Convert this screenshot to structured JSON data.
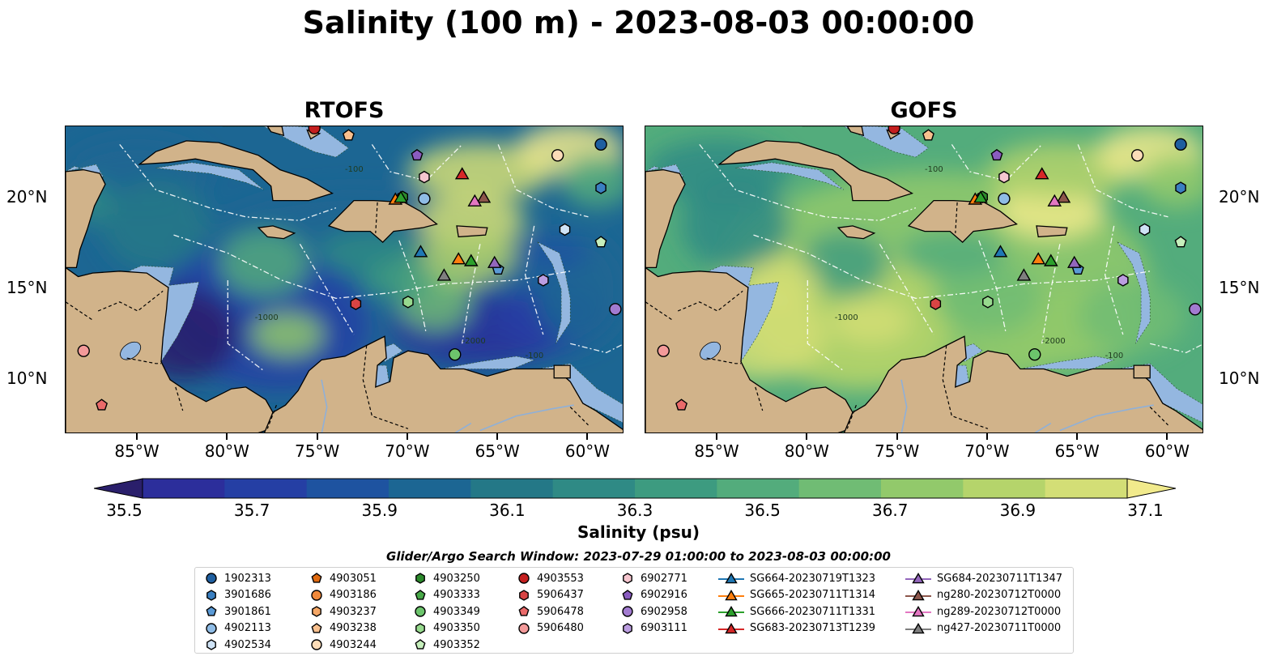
{
  "figure": {
    "title": "Salinity (100 m) - 2023-08-03 00:00:00",
    "panels": [
      {
        "title": "RTOFS",
        "style": "rtofs"
      },
      {
        "title": "GOFS",
        "style": "gofs"
      }
    ],
    "lon_ticks": [
      "85°W",
      "80°W",
      "75°W",
      "70°W",
      "65°W",
      "60°W"
    ],
    "lon_values": [
      -85,
      -80,
      -75,
      -70,
      -65,
      -60
    ],
    "lat_ticks": [
      "20°N",
      "15°N",
      "10°N"
    ],
    "lat_values": [
      20,
      15,
      10
    ],
    "extent": {
      "lon": [
        -89,
        -58
      ],
      "lat": [
        7,
        24
      ]
    },
    "isobath_labels": [
      "-1000",
      "-2000",
      "-100"
    ]
  },
  "colorbar": {
    "label": "Salinity (psu)",
    "ticks": [
      "35.5",
      "35.7",
      "35.9",
      "36.1",
      "36.3",
      "36.5",
      "36.7",
      "36.9",
      "37.1"
    ],
    "tick_values": [
      35.5,
      35.7,
      35.9,
      36.1,
      36.3,
      36.5,
      36.7,
      36.9,
      37.1
    ],
    "range": [
      35.4,
      37.2
    ],
    "extend": "both",
    "colors": [
      "#2a1f6b",
      "#2c2e9b",
      "#253fa4",
      "#1e53a0",
      "#1c6693",
      "#247887",
      "#2f8a85",
      "#3d9b80",
      "#53ac7c",
      "#70bc74",
      "#92c96b",
      "#b5d46b",
      "#d3de76",
      "#f1ea8c"
    ]
  },
  "search_window": "Glider/Argo Search Window: 2023-07-29 01:00:00 to 2023-08-03 00:00:00",
  "legend": {
    "columns": [
      [
        {
          "label": "1902313",
          "marker": "circle",
          "color": "#1f5fa0"
        },
        {
          "label": "3901686",
          "marker": "hexagon",
          "color": "#3a7fc1"
        },
        {
          "label": "3901861",
          "marker": "pentagon",
          "color": "#5a9ad6"
        },
        {
          "label": "4902113",
          "marker": "circle",
          "color": "#8fbce6"
        },
        {
          "label": "4902534",
          "marker": "hexagon",
          "color": "#cfe3f6"
        }
      ],
      [
        {
          "label": "4903051",
          "marker": "pentagon",
          "color": "#e06a10"
        },
        {
          "label": "4903186",
          "marker": "circle",
          "color": "#f0893b"
        },
        {
          "label": "4903237",
          "marker": "hexagon",
          "color": "#f5a766"
        },
        {
          "label": "4903238",
          "marker": "pentagon",
          "color": "#f8c08e"
        },
        {
          "label": "4903244",
          "marker": "circle",
          "color": "#fcdcb8"
        }
      ],
      [
        {
          "label": "4903250",
          "marker": "hexagon",
          "color": "#2c8a2c"
        },
        {
          "label": "4903333",
          "marker": "pentagon",
          "color": "#48a848"
        },
        {
          "label": "4903349",
          "marker": "circle",
          "color": "#6cc46c"
        },
        {
          "label": "4903350",
          "marker": "hexagon",
          "color": "#97da8e"
        },
        {
          "label": "4903352",
          "marker": "pentagon",
          "color": "#c6efbc"
        }
      ],
      [
        {
          "label": "4903553",
          "marker": "circle",
          "color": "#c41f1f"
        },
        {
          "label": "5906437",
          "marker": "hexagon",
          "color": "#d84444"
        },
        {
          "label": "5906478",
          "marker": "pentagon",
          "color": "#ea6a6a"
        },
        {
          "label": "5906480",
          "marker": "circle",
          "color": "#f39a9a"
        }
      ],
      [
        {
          "label": "6902771",
          "marker": "hexagon",
          "color": "#f6c6cf"
        },
        {
          "label": "6902916",
          "marker": "pentagon",
          "color": "#8a5cc0"
        },
        {
          "label": "6902958",
          "marker": "circle",
          "color": "#a27bd0"
        },
        {
          "label": "6903111",
          "marker": "hexagon",
          "color": "#bb9de0"
        }
      ],
      [
        {
          "label": "SG664-20230719T1323",
          "marker": "triangle",
          "color": "#1f77b4"
        },
        {
          "label": "SG665-20230711T1314",
          "marker": "triangle",
          "color": "#ff7f0e"
        },
        {
          "label": "SG666-20230711T1331",
          "marker": "triangle",
          "color": "#2ca02c"
        },
        {
          "label": "SG683-20230713T1239",
          "marker": "triangle",
          "color": "#d62728"
        }
      ],
      [
        {
          "label": "SG684-20230711T1347",
          "marker": "triangle",
          "color": "#9467bd"
        },
        {
          "label": "ng280-20230712T0000",
          "marker": "triangle",
          "color": "#8c564b"
        },
        {
          "label": "ng289-20230712T0000",
          "marker": "triangle",
          "color": "#e377c2"
        },
        {
          "label": "ng427-20230711T0000",
          "marker": "triangle",
          "color": "#7f7f7f"
        }
      ]
    ]
  },
  "stations": [
    {
      "lon": -59.3,
      "lat": 23.0,
      "marker": "circle",
      "color": "#1f5fa0"
    },
    {
      "lon": -59.3,
      "lat": 20.6,
      "marker": "hexagon",
      "color": "#3a7fc1"
    },
    {
      "lon": -65.0,
      "lat": 16.1,
      "marker": "pentagon",
      "color": "#5a9ad6"
    },
    {
      "lon": -69.1,
      "lat": 20.0,
      "marker": "circle",
      "color": "#8fbce6"
    },
    {
      "lon": -61.3,
      "lat": 18.3,
      "marker": "hexagon",
      "color": "#cfe3f6"
    },
    {
      "lon": -73.3,
      "lat": 23.5,
      "marker": "pentagon",
      "color": "#f8c08e"
    },
    {
      "lon": -61.7,
      "lat": 22.4,
      "marker": "circle",
      "color": "#fcdcb8"
    },
    {
      "lon": -70.3,
      "lat": 20.1,
      "marker": "hexagon",
      "color": "#2c8a2c"
    },
    {
      "lon": -69.5,
      "lat": 22.4,
      "marker": "pentagon",
      "color": "#8a5cc0"
    },
    {
      "lon": -69.1,
      "lat": 21.2,
      "marker": "hexagon",
      "color": "#f6c6cf"
    },
    {
      "lon": -67.4,
      "lat": 11.4,
      "marker": "circle",
      "color": "#6cc46c"
    },
    {
      "lon": -70.0,
      "lat": 14.3,
      "marker": "hexagon",
      "color": "#97da8e"
    },
    {
      "lon": -59.3,
      "lat": 17.6,
      "marker": "pentagon",
      "color": "#c6efbc"
    },
    {
      "lon": -75.2,
      "lat": 23.9,
      "marker": "circle",
      "color": "#c41f1f"
    },
    {
      "lon": -72.9,
      "lat": 14.2,
      "marker": "hexagon",
      "color": "#d84444"
    },
    {
      "lon": -87.0,
      "lat": 8.6,
      "marker": "pentagon",
      "color": "#ea6a6a"
    },
    {
      "lon": -88.0,
      "lat": 11.6,
      "marker": "circle",
      "color": "#f39a9a"
    },
    {
      "lon": -58.5,
      "lat": 13.9,
      "marker": "circle",
      "color": "#a27bd0"
    },
    {
      "lon": -62.5,
      "lat": 15.5,
      "marker": "hexagon",
      "color": "#bb9de0"
    },
    {
      "lon": -69.3,
      "lat": 17.1,
      "marker": "triangle",
      "color": "#1f77b4"
    },
    {
      "lon": -67.2,
      "lat": 16.7,
      "marker": "triangle",
      "color": "#ff7f0e"
    },
    {
      "lon": -66.5,
      "lat": 16.6,
      "marker": "triangle",
      "color": "#2ca02c"
    },
    {
      "lon": -70.7,
      "lat": 20.0,
      "marker": "triangle",
      "color": "#ff7f0e"
    },
    {
      "lon": -70.4,
      "lat": 20.1,
      "marker": "triangle",
      "color": "#2ca02c"
    },
    {
      "lon": -67.0,
      "lat": 21.4,
      "marker": "triangle",
      "color": "#d62728"
    },
    {
      "lon": -65.2,
      "lat": 16.5,
      "marker": "triangle",
      "color": "#9467bd"
    },
    {
      "lon": -65.8,
      "lat": 20.1,
      "marker": "triangle",
      "color": "#8c564b"
    },
    {
      "lon": -66.3,
      "lat": 19.9,
      "marker": "triangle",
      "color": "#e377c2"
    },
    {
      "lon": -68.0,
      "lat": 15.8,
      "marker": "triangle",
      "color": "#7f7f7f"
    }
  ],
  "colors": {
    "land": "#d1b38a",
    "shelf": "#94b7e0",
    "pacific": "#2a1f6b",
    "border": "#000000"
  }
}
